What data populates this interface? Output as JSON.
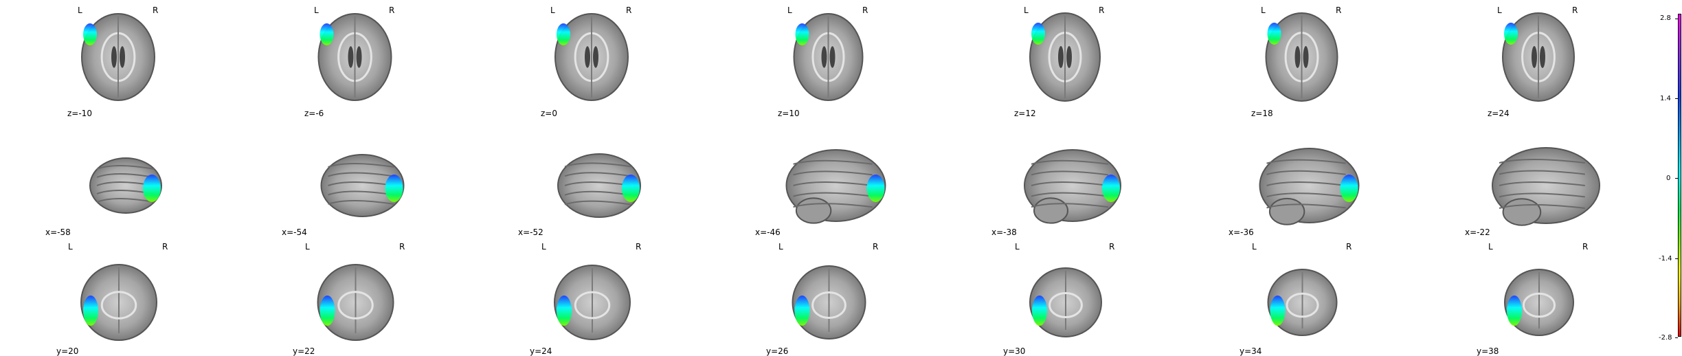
{
  "orientation": {
    "left": "L",
    "right": "R"
  },
  "axial": {
    "cuts": [
      "z=-10",
      "z=-6",
      "z=0",
      "z=10",
      "z=12",
      "z=18",
      "z=24"
    ]
  },
  "sagittal": {
    "cuts": [
      "x=-58",
      "x=-54",
      "x=-52",
      "x=-46",
      "x=-38",
      "x=-36",
      "x=-22"
    ]
  },
  "coronal": {
    "cuts": [
      "y=20",
      "y=22",
      "y=24",
      "y=26",
      "y=30",
      "y=34",
      "y=38"
    ]
  },
  "colorbar": {
    "ticks": [
      "2.8",
      "1.4",
      "0",
      "-1.4",
      "-2.8"
    ],
    "colors": [
      "#ff00ff",
      "#8a2be2",
      "#1e3cff",
      "#00b4ff",
      "#00ffff",
      "#00ff60",
      "#7cfc00",
      "#ffff00",
      "#ffa500",
      "#ff0000"
    ]
  }
}
